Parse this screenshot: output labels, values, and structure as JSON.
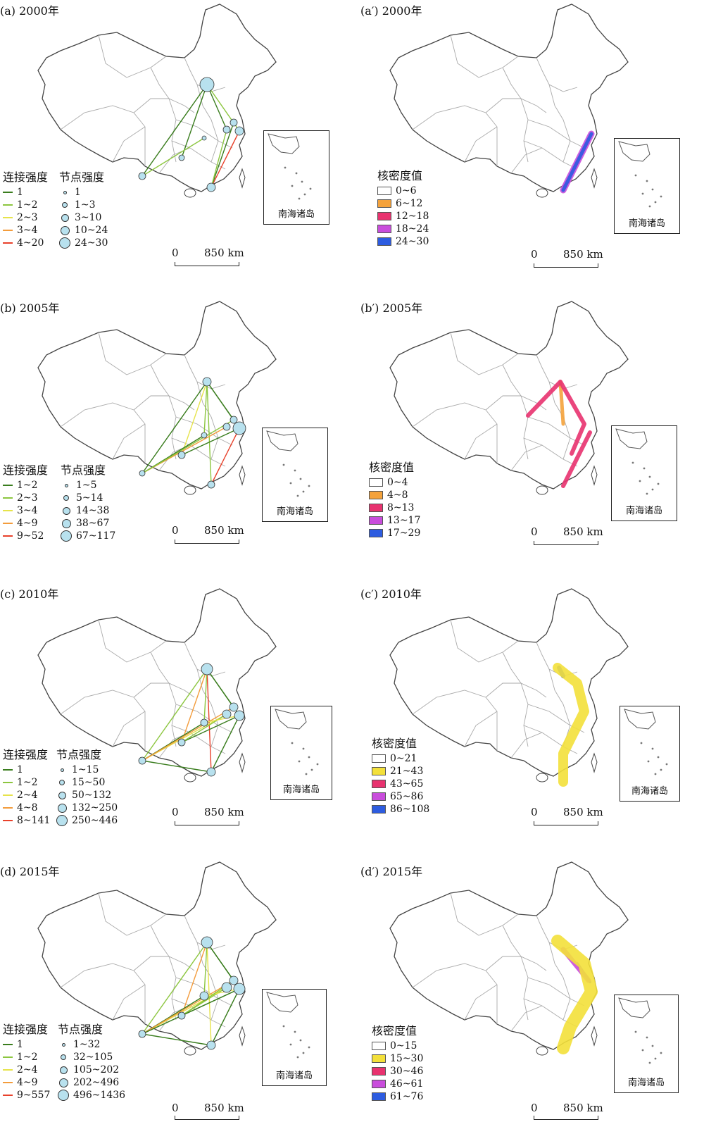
{
  "panels": [
    {
      "id": "a",
      "title": "(a) 2000年",
      "kind": "network",
      "legend_link_title": "连接强度",
      "legend_node_title": "节点强度",
      "link_classes": [
        {
          "label": "1",
          "color": "#3a7d1e"
        },
        {
          "label": "1~2",
          "color": "#8cc63f"
        },
        {
          "label": "2~3",
          "color": "#e6e34a"
        },
        {
          "label": "3~4",
          "color": "#f39c3c"
        },
        {
          "label": "4~20",
          "color": "#e8412b"
        }
      ],
      "node_classes": [
        "1",
        "1~3",
        "3~10",
        "10~24",
        "24~30"
      ],
      "inset_label": "南海诸岛",
      "scale_zero": "0",
      "scale_value": "850 km"
    },
    {
      "id": "a2",
      "title": "(a′) 2000年",
      "kind": "kernel",
      "legend_title": "核密度值",
      "classes": [
        {
          "label": "0~6",
          "color": "#ffffff"
        },
        {
          "label": "6~12",
          "color": "#f4a23b"
        },
        {
          "label": "12~18",
          "color": "#e8326f"
        },
        {
          "label": "18~24",
          "color": "#c94ddc"
        },
        {
          "label": "24~30",
          "color": "#2d5ce0"
        }
      ],
      "inset_label": "南海诸岛",
      "scale_zero": "0",
      "scale_value": "850 km"
    },
    {
      "id": "b",
      "title": "(b) 2005年",
      "kind": "network",
      "legend_link_title": "连接强度",
      "legend_node_title": "节点强度",
      "link_classes": [
        {
          "label": "1~2",
          "color": "#3a7d1e"
        },
        {
          "label": "2~3",
          "color": "#8cc63f"
        },
        {
          "label": "3~4",
          "color": "#e6e34a"
        },
        {
          "label": "4~9",
          "color": "#f39c3c"
        },
        {
          "label": "9~52",
          "color": "#e8412b"
        }
      ],
      "node_classes": [
        "1~5",
        "5~14",
        "14~38",
        "38~67",
        "67~117"
      ],
      "inset_label": "南海诸岛",
      "scale_zero": "0",
      "scale_value": "850 km"
    },
    {
      "id": "b2",
      "title": "(b′) 2005年",
      "kind": "kernel",
      "legend_title": "核密度值",
      "classes": [
        {
          "label": "0~4",
          "color": "#ffffff"
        },
        {
          "label": "4~8",
          "color": "#f4a23b"
        },
        {
          "label": "8~13",
          "color": "#e8326f"
        },
        {
          "label": "13~17",
          "color": "#c94ddc"
        },
        {
          "label": "17~29",
          "color": "#2d5ce0"
        }
      ],
      "inset_label": "南海诸岛",
      "scale_zero": "0",
      "scale_value": "850 km"
    },
    {
      "id": "c",
      "title": "(c) 2010年",
      "kind": "network",
      "legend_link_title": "连接强度",
      "legend_node_title": "节点强度",
      "link_classes": [
        {
          "label": "1",
          "color": "#3a7d1e"
        },
        {
          "label": "1~2",
          "color": "#8cc63f"
        },
        {
          "label": "2~4",
          "color": "#e6e34a"
        },
        {
          "label": "4~8",
          "color": "#f39c3c"
        },
        {
          "label": "8~141",
          "color": "#e8412b"
        }
      ],
      "node_classes": [
        "1~15",
        "15~50",
        "50~132",
        "132~250",
        "250~446"
      ],
      "inset_label": "南海诸岛",
      "scale_zero": "0",
      "scale_value": "850 km"
    },
    {
      "id": "c2",
      "title": "(c′) 2010年",
      "kind": "kernel",
      "legend_title": "核密度值",
      "classes": [
        {
          "label": "0~21",
          "color": "#ffffff"
        },
        {
          "label": "21~43",
          "color": "#f3e03a"
        },
        {
          "label": "43~65",
          "color": "#e8326f"
        },
        {
          "label": "65~86",
          "color": "#c94ddc"
        },
        {
          "label": "86~108",
          "color": "#2d5ce0"
        }
      ],
      "inset_label": "南海诸岛",
      "scale_zero": "0",
      "scale_value": "850 km"
    },
    {
      "id": "d",
      "title": "(d) 2015年",
      "kind": "network",
      "legend_link_title": "连接强度",
      "legend_node_title": "节点强度",
      "link_classes": [
        {
          "label": "1",
          "color": "#3a7d1e"
        },
        {
          "label": "1~2",
          "color": "#8cc63f"
        },
        {
          "label": "2~4",
          "color": "#e6e34a"
        },
        {
          "label": "4~9",
          "color": "#f39c3c"
        },
        {
          "label": "9~557",
          "color": "#e8412b"
        }
      ],
      "node_classes": [
        "1~32",
        "32~105",
        "105~202",
        "202~496",
        "496~1436"
      ],
      "inset_label": "南海诸岛",
      "scale_zero": "0",
      "scale_value": "850 km"
    },
    {
      "id": "d2",
      "title": "(d′) 2015年",
      "kind": "kernel",
      "legend_title": "核密度值",
      "classes": [
        {
          "label": "0~15",
          "color": "#ffffff"
        },
        {
          "label": "15~30",
          "color": "#f3e03a"
        },
        {
          "label": "30~46",
          "color": "#e8326f"
        },
        {
          "label": "46~61",
          "color": "#c94ddc"
        },
        {
          "label": "61~76",
          "color": "#2d5ce0"
        }
      ],
      "inset_label": "南海诸岛",
      "scale_zero": "0",
      "scale_value": "850 km"
    }
  ]
}
